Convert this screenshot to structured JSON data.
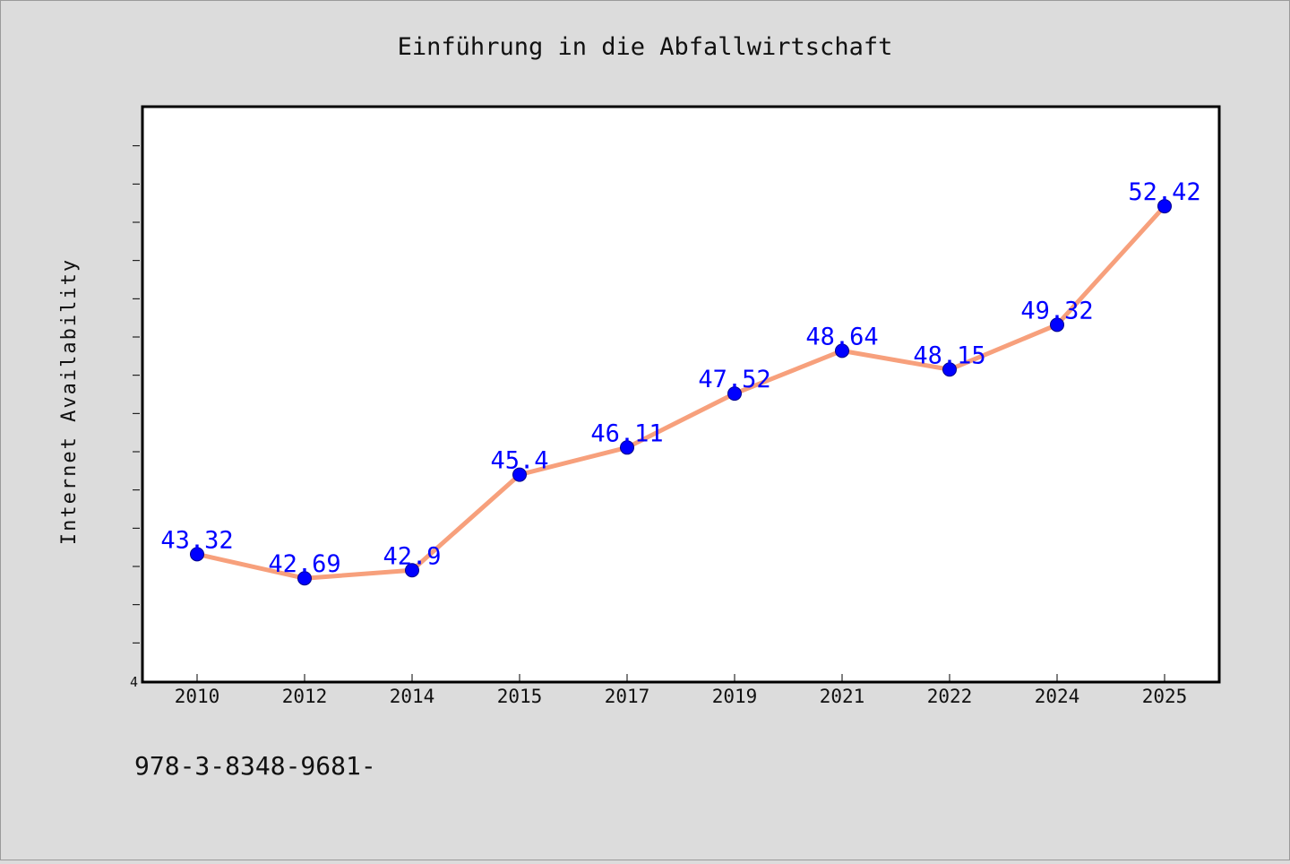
{
  "chart_data": {
    "type": "line",
    "title": "Einführung in die Abfallwirtschaft",
    "xlabel": "",
    "ylabel": "Internet Availability",
    "categories": [
      "2010",
      "2012",
      "2014",
      "2015",
      "2017",
      "2019",
      "2021",
      "2022",
      "2024",
      "2025"
    ],
    "series": [
      {
        "values": [
          43.32,
          42.69,
          42.9,
          45.4,
          46.11,
          47.52,
          48.64,
          48.15,
          49.32,
          52.42
        ],
        "labels": [
          "43.32",
          "42.69",
          "42.9",
          "45.4",
          "46.11",
          "47.52",
          "48.64",
          "48.15",
          "49.32",
          "52.42"
        ]
      }
    ],
    "y_tick_labels": [
      "4"
    ],
    "ylim": [
      40.0,
      55.0
    ],
    "grid": false,
    "colors": {
      "line": "#f7a07c",
      "marker": "#0000ff",
      "marker_edge": "#00008b",
      "data_label": "#0000ff",
      "plot_background": "#ffffff",
      "figure_background": "#dcdcdc"
    }
  },
  "footer": {
    "isbn_text": "978-3-8348-9681-"
  }
}
